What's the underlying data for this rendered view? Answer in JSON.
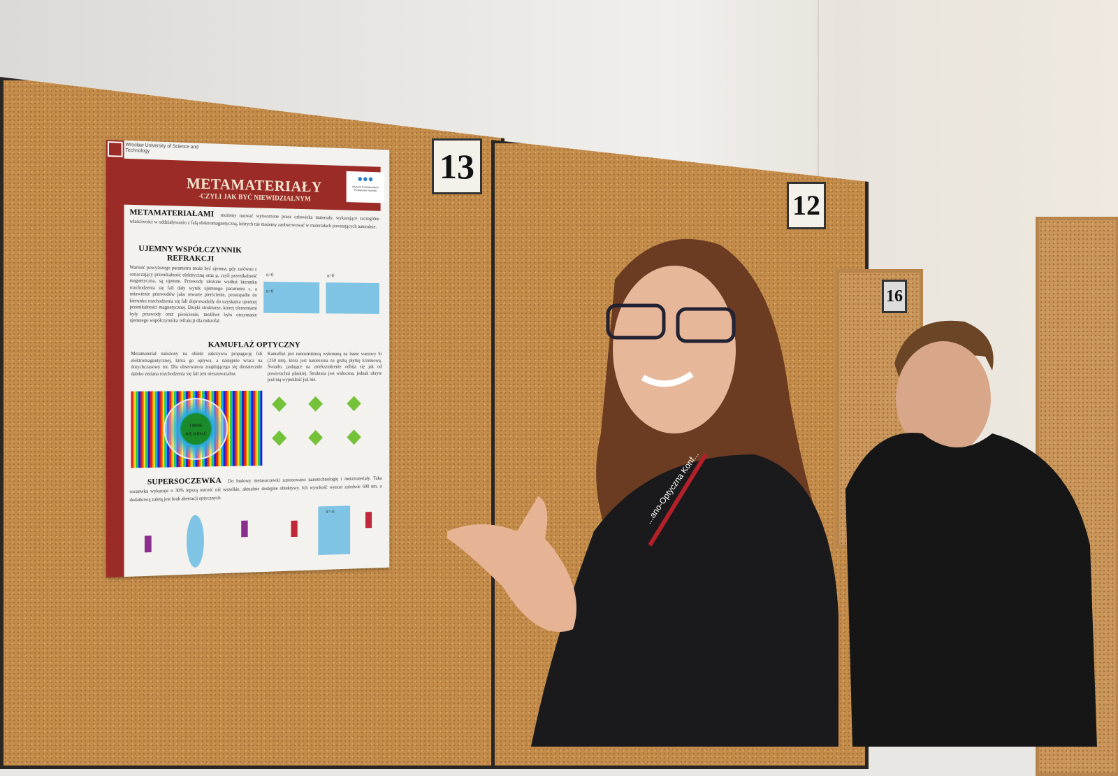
{
  "boards": {
    "left_number": "13",
    "center_number": "12",
    "far_number": "16"
  },
  "poster": {
    "university": "Wrocław University of Science and Technology",
    "faculty_logo_text": "Wydział Podstawowych Problemów Techniki",
    "title": "METAMATERIAŁY",
    "subtitle": "-CZYLI JAK BYĆ NIEWIDZIALNYM",
    "sections": [
      {
        "heading": "METAMATERIAŁAMI",
        "text": "możemy nazwać wytworzone przez człowieka materiały, wykazujące szczególne właściwości w oddziaływaniu z falą elektromagnetyczną, których nie możemy zaobserwować w materiałach powstających naturalnie."
      },
      {
        "heading": "UJEMNY WSPÓŁCZYNNIK REFRAKCJI",
        "text": "Wartość powyższego parametru może być ujemna, gdy zarówno ε oznaczający przenikalność elektryczną oraz μ, czyli przenikalność magnetyczna, są ujemne. Przewody ułożone wzdłuż kierunku rozchodzenia się fali dały wynik ujemnego parametru ε, a ustawienie przewodów jako otwarte pierścienie, prostopadle do kierunku rozchodzenia się fali doprowadziły do uzyskania ujemnej przenikalności magnetycznej. Dzięki strukturze, której elementami były przewody oraz pierścienie, możliwe było otrzymanie ujemnego współczynnika refrakcji dla mikrofal.",
        "diagram_labels": [
          "n>0",
          "n>0",
          "n<0"
        ]
      },
      {
        "heading": "KAMUFLAŻ OPTYCZNY",
        "text_left": "Metamateriał nałożony na obiekt zakrzywia propagację fali elektromagnetycznej, która go opływa, a następnie wraca na dotychczasowy tor. Dla obserwatora znajdującego się dostatecznie daleko zmiana rozchodzenia się fali jest niezauważalna.",
        "text_right": "Kamuflaż jest nanostrukturą wykonaną na bazie warstwy Si (250 nm), która jest naniesiona na grubą płytkę krzemową. Światło, padające na zniekształcenie odbija się jak od powierzchni płaskiej. Struktura jest widoczna, jednak ukryte pod nią wypukłość już nie.",
        "figure_text": [
          "I MNIE",
          "NIE WIDAĆ"
        ]
      },
      {
        "heading": "SUPERSOCZEWKA",
        "text": "Do budowy metasoczewki zastosowano nanotechnologię i metamateriały. Taka soczewka wykazuje o 30% lepszą ostrość niż wszelkie, aktualnie dostępne obiektywy. Ich wysokość wynosi zaledwie 600 nm, a dodatkową zaletą jest brak aberracji optycznych.",
        "diagram_labels": [
          "n>0",
          "n>0",
          "n>0",
          "n=-n",
          "n>0"
        ]
      }
    ]
  },
  "lanyard_text": "...ano-Optyczna Konf...",
  "colors": {
    "poster_red": "#9b2b26",
    "cork": "#c48c4a",
    "wall": "#efece7",
    "jacket": "#1a1a1c"
  }
}
